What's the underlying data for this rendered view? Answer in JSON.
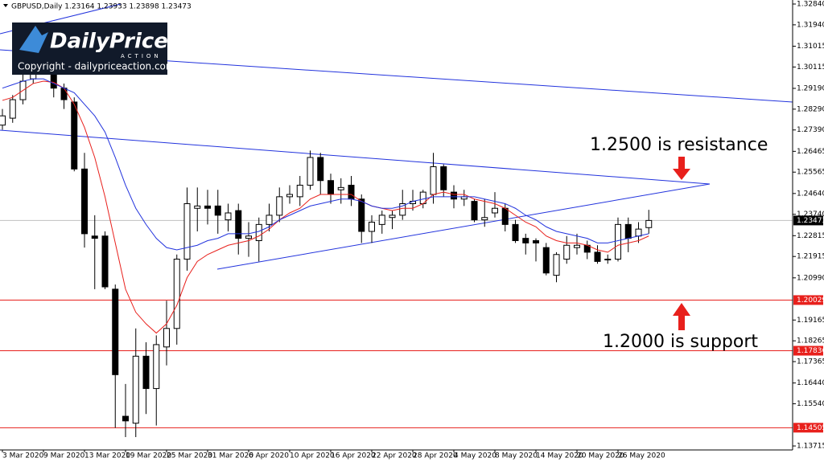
{
  "chart_data": {
    "type": "candlestick",
    "title": "GBPUSD,Daily  1.23164 1.23933 1.23898 1.23473",
    "categories": [
      "3 Mar 2020",
      null,
      null,
      null,
      "9 Mar 2020",
      null,
      null,
      null,
      "13 Mar 2020",
      null,
      null,
      null,
      "19 Mar 2020",
      null,
      null,
      null,
      "25 Mar 2020",
      null,
      null,
      null,
      "31 Mar 2020",
      null,
      null,
      null,
      "6 Apr 2020",
      null,
      null,
      null,
      "10 Apr 2020",
      null,
      null,
      null,
      "16 Apr 2020",
      null,
      null,
      null,
      "22 Apr 2020",
      null,
      null,
      null,
      "28 Apr 2020",
      null,
      null,
      null,
      "4 May 2020",
      null,
      null,
      null,
      "8 May 2020",
      null,
      null,
      null,
      "14 May 2020",
      null,
      null,
      null,
      "20 May 2020",
      null,
      null,
      null,
      "26 May 2020",
      null,
      null,
      null
    ],
    "open": [
      1.276,
      1.279,
      1.287,
      1.296,
      1.305,
      1.309,
      1.292,
      1.286,
      1.257,
      1.228,
      1.228,
      1.205,
      1.15,
      1.147,
      1.176,
      1.162,
      1.18,
      1.188,
      1.218,
      1.24,
      1.241,
      1.241,
      1.235,
      1.239,
      1.227,
      1.226,
      1.233,
      1.237,
      1.245,
      1.245,
      1.25,
      1.262,
      1.252,
      1.248,
      1.25,
      1.244,
      1.23,
      1.233,
      1.236,
      1.237,
      1.242,
      1.242,
      1.246,
      1.258,
      1.247,
      1.244,
      1.243,
      1.235,
      1.238,
      1.24,
      1.233,
      1.227,
      1.226,
      1.223,
      1.211,
      1.218,
      1.223,
      1.224,
      1.221,
      1.218,
      1.218,
      1.233,
      1.228,
      1.23164
    ],
    "high": [
      1.283,
      1.289,
      1.299,
      1.308,
      1.32,
      1.312,
      1.294,
      1.288,
      1.264,
      1.237,
      1.23,
      1.207,
      1.164,
      1.188,
      1.182,
      1.185,
      1.2,
      1.22,
      1.249,
      1.249,
      1.248,
      1.248,
      1.242,
      1.242,
      1.234,
      1.236,
      1.242,
      1.249,
      1.25,
      1.254,
      1.265,
      1.264,
      1.255,
      1.253,
      1.254,
      1.246,
      1.237,
      1.239,
      1.239,
      1.248,
      1.248,
      1.248,
      1.264,
      1.259,
      1.25,
      1.248,
      1.244,
      1.244,
      1.247,
      1.242,
      1.235,
      1.229,
      1.227,
      1.225,
      1.221,
      1.228,
      1.229,
      1.226,
      1.224,
      1.22,
      1.236,
      1.236,
      1.234,
      1.23933
    ],
    "low": [
      1.274,
      1.277,
      1.285,
      1.294,
      1.298,
      1.288,
      1.283,
      1.256,
      1.223,
      1.205,
      1.205,
      1.145,
      1.141,
      1.141,
      1.151,
      1.146,
      1.172,
      1.181,
      1.213,
      1.23,
      1.233,
      1.229,
      1.23,
      1.22,
      1.219,
      1.217,
      1.23,
      1.234,
      1.242,
      1.241,
      1.248,
      1.246,
      1.242,
      1.242,
      1.241,
      1.225,
      1.225,
      1.229,
      1.231,
      1.235,
      1.239,
      1.24,
      1.242,
      1.245,
      1.24,
      1.241,
      1.234,
      1.232,
      1.236,
      1.23,
      1.225,
      1.22,
      1.217,
      1.211,
      1.208,
      1.216,
      1.22,
      1.218,
      1.216,
      1.216,
      1.217,
      1.221,
      1.225,
      1.229
    ],
    "close": [
      1.28,
      1.287,
      1.295,
      1.305,
      1.309,
      1.292,
      1.287,
      1.257,
      1.229,
      1.227,
      1.206,
      1.168,
      1.148,
      1.176,
      1.162,
      1.181,
      1.188,
      1.218,
      1.242,
      1.241,
      1.24,
      1.237,
      1.238,
      1.227,
      1.228,
      1.233,
      1.237,
      1.245,
      1.246,
      1.25,
      1.262,
      1.252,
      1.246,
      1.249,
      1.244,
      1.23,
      1.234,
      1.237,
      1.237,
      1.242,
      1.243,
      1.247,
      1.258,
      1.248,
      1.244,
      1.245,
      1.235,
      1.236,
      1.24,
      1.233,
      1.226,
      1.225,
      1.225,
      1.212,
      1.22,
      1.224,
      1.224,
      1.221,
      1.217,
      1.218,
      1.233,
      1.227,
      1.231,
      1.23473
    ],
    "series": [
      {
        "color": "#e8201c",
        "values": [
          1.2867,
          1.288,
          1.291,
          1.294,
          1.295,
          1.2945,
          1.292,
          1.285,
          1.275,
          1.262,
          1.245,
          1.225,
          1.205,
          1.195,
          1.19,
          1.186,
          1.19,
          1.198,
          1.21,
          1.217,
          1.22,
          1.222,
          1.224,
          1.225,
          1.226,
          1.228,
          1.231,
          1.235,
          1.238,
          1.24,
          1.244,
          1.246,
          1.246,
          1.246,
          1.246,
          1.243,
          1.241,
          1.24,
          1.239,
          1.24,
          1.24,
          1.242,
          1.246,
          1.247,
          1.246,
          1.246,
          1.244,
          1.243,
          1.242,
          1.24,
          1.237,
          1.234,
          1.232,
          1.228,
          1.226,
          1.225,
          1.225,
          1.224,
          1.222,
          1.221,
          1.224,
          1.225,
          1.226,
          1.228
        ]
      },
      {
        "color": "#2233dd",
        "values": [
          1.292,
          1.2935,
          1.295,
          1.296,
          1.296,
          1.294,
          1.292,
          1.29,
          1.285,
          1.28,
          1.273,
          1.262,
          1.25,
          1.24,
          1.233,
          1.227,
          1.223,
          1.222,
          1.223,
          1.224,
          1.226,
          1.227,
          1.229,
          1.229,
          1.229,
          1.23,
          1.232,
          1.235,
          1.237,
          1.239,
          1.241,
          1.242,
          1.243,
          1.244,
          1.244,
          1.243,
          1.241,
          1.24,
          1.24,
          1.241,
          1.243,
          1.244,
          1.245,
          1.245,
          1.245,
          1.245,
          1.245,
          1.244,
          1.243,
          1.242,
          1.24,
          1.237,
          1.235,
          1.232,
          1.23,
          1.229,
          1.228,
          1.227,
          1.225,
          1.225,
          1.226,
          1.227,
          1.228,
          1.229
        ]
      }
    ],
    "up_color": "#ffffff",
    "down_color": "#000000",
    "ylim": [
      1.13612,
      1.33014
    ],
    "yticks": [
      {
        "value": 1.3284,
        "label": "1.32840"
      },
      {
        "value": 1.3194,
        "label": "1.31940"
      },
      {
        "value": 1.31015,
        "label": "1.31015"
      },
      {
        "value": 1.30115,
        "label": "1.30115"
      },
      {
        "value": 1.2919,
        "label": "1.29190"
      },
      {
        "value": 1.2829,
        "label": "1.28290"
      },
      {
        "value": 1.2739,
        "label": "1.27390"
      },
      {
        "value": 1.26465,
        "label": "1.26465"
      },
      {
        "value": 1.25565,
        "label": "1.25565"
      },
      {
        "value": 1.2464,
        "label": "1.24640"
      },
      {
        "value": 1.2374,
        "label": "1.23740"
      },
      {
        "value": 1.22815,
        "label": "1.22815"
      },
      {
        "value": 1.21915,
        "label": "1.21915"
      },
      {
        "value": 1.2099,
        "label": "1.20990"
      },
      {
        "value": 1.19165,
        "label": "1.19165"
      },
      {
        "value": 1.18265,
        "label": "1.18265"
      },
      {
        "value": 1.17365,
        "label": "1.17365"
      },
      {
        "value": 1.1644,
        "label": "1.16440"
      },
      {
        "value": 1.1554,
        "label": "1.15540"
      },
      {
        "value": 1.13715,
        "label": "1.13715"
      }
    ],
    "levels": [
      {
        "value": 1.20029,
        "label": "1.20029"
      },
      {
        "value": 1.17836,
        "label": "1.17836"
      },
      {
        "value": 1.14505,
        "label": "1.14505"
      }
    ],
    "level_color": "#e8201c",
    "last_price": {
      "value": 1.23473,
      "label": "1.23473"
    },
    "annotations": [
      "1.2500 is resistance",
      "1.2000 is support"
    ],
    "grid": false
  },
  "logo": {
    "brand": "DailyPrice",
    "tagline": "ACTION",
    "copyright": "Copyright - dailypriceaction.com"
  }
}
